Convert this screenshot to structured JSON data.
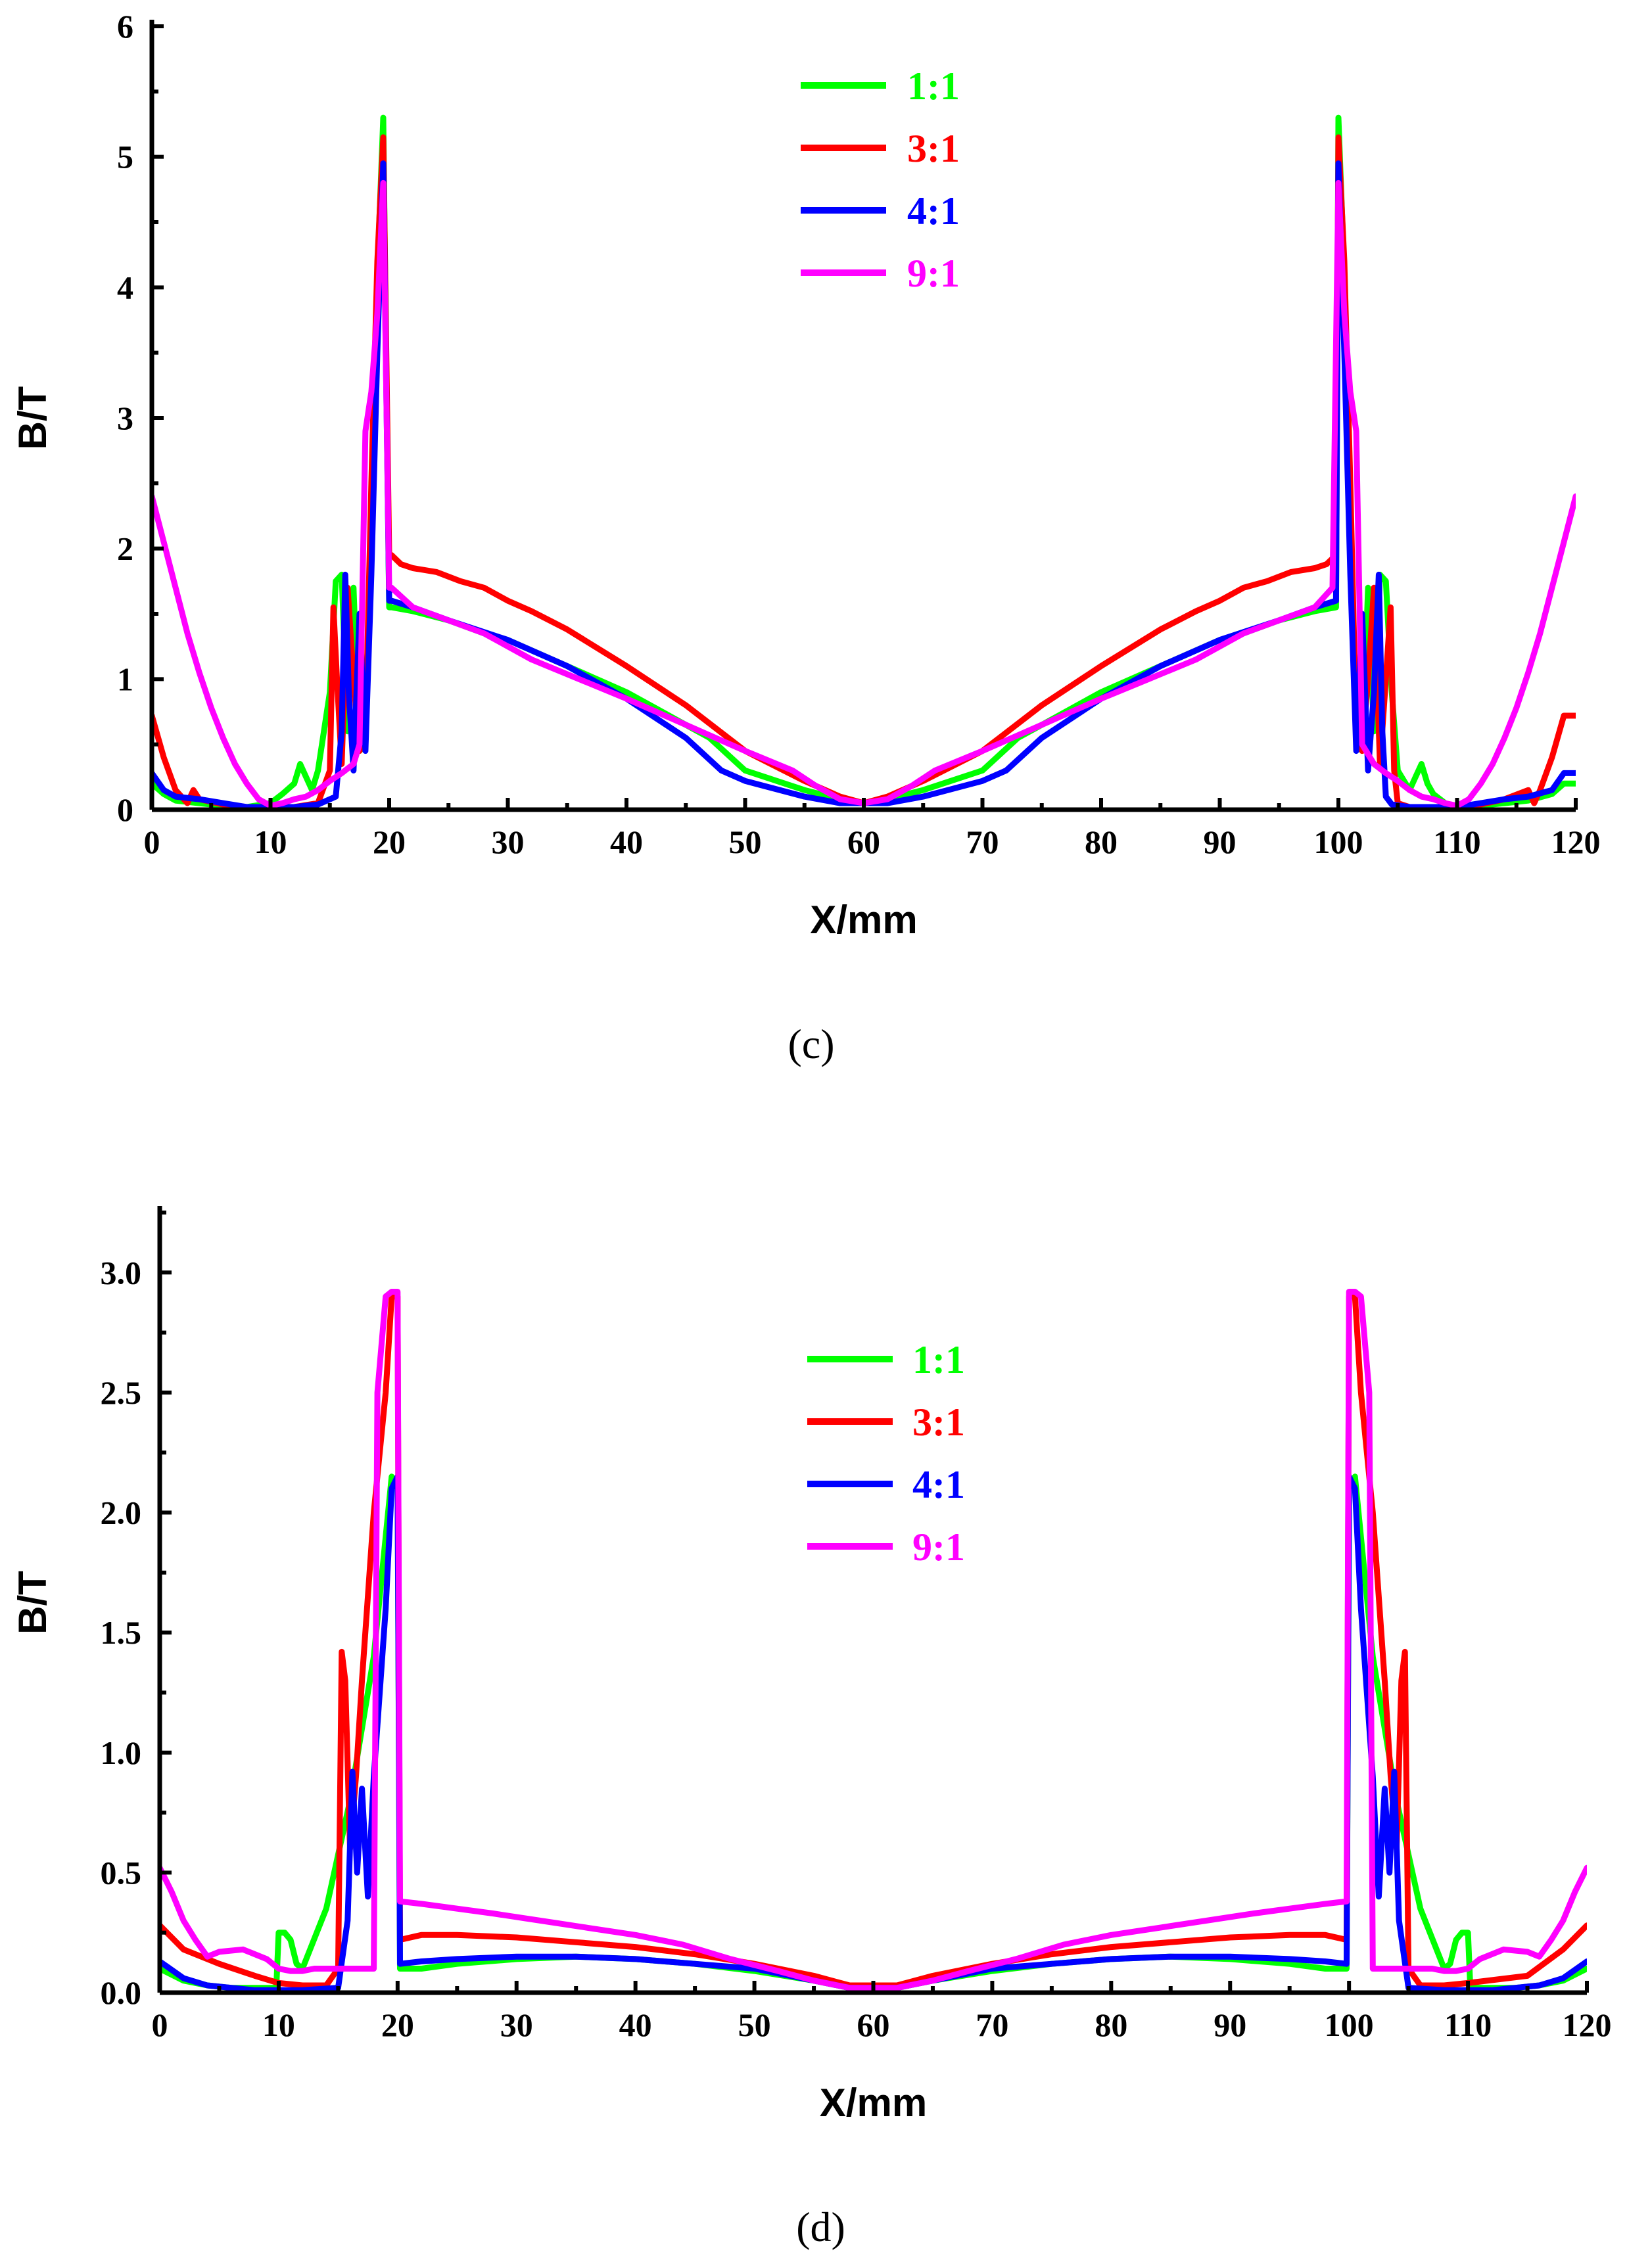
{
  "colors": {
    "1:1": "#00ff00",
    "3:1": "#ff0000",
    "4:1": "#0000ff",
    "9:1": "#ff00ff"
  },
  "chart_data": [
    {
      "id": "c",
      "caption": "(c)",
      "type": "line",
      "title": "",
      "xlabel": "X/mm",
      "ylabel": "B/T",
      "xlim": [
        0,
        120
      ],
      "ylim": [
        0,
        6
      ],
      "xticks": [
        0,
        10,
        20,
        30,
        40,
        50,
        60,
        70,
        80,
        90,
        100,
        110,
        120
      ],
      "yticks": [
        0,
        1,
        2,
        3,
        4,
        5,
        6
      ],
      "ytick_labels": [
        "0",
        "1",
        "2",
        "3",
        "4",
        "5",
        "6"
      ],
      "legend_position": "top-center",
      "series": [
        {
          "name": "1:1",
          "color": "#00ff00",
          "x": [
            0,
            1,
            2,
            4,
            6,
            8,
            10,
            11,
            12,
            12.5,
            13,
            13.5,
            14,
            15,
            15.5,
            16,
            16.5,
            17,
            17.5,
            18,
            18.5,
            19,
            19.5,
            20,
            20.2,
            22,
            25,
            28,
            30,
            35,
            40,
            45,
            47,
            50,
            55,
            58,
            60,
            62,
            65,
            70,
            73,
            75,
            80,
            85,
            90,
            92,
            95,
            98,
            99.8,
            100,
            100.5,
            101,
            101.5,
            102,
            102.5,
            103,
            103.5,
            104,
            104.5,
            105,
            106,
            106.5,
            107,
            107.5,
            108,
            109,
            110,
            112,
            114,
            116,
            118,
            119,
            120
          ],
          "y": [
            0.2,
            0.12,
            0.07,
            0.05,
            0.03,
            0.02,
            0.05,
            0.12,
            0.2,
            0.35,
            0.25,
            0.15,
            0.3,
            0.9,
            1.75,
            1.8,
            0.6,
            1.7,
            0.45,
            0.5,
            2.3,
            4.1,
            5.3,
            1.55,
            1.55,
            1.52,
            1.45,
            1.35,
            1.3,
            1.1,
            0.9,
            0.65,
            0.55,
            0.3,
            0.15,
            0.08,
            0.05,
            0.08,
            0.15,
            0.3,
            0.55,
            0.65,
            0.9,
            1.1,
            1.3,
            1.35,
            1.45,
            1.52,
            1.55,
            5.3,
            4.1,
            2.3,
            0.5,
            0.45,
            1.7,
            0.6,
            1.8,
            1.75,
            0.9,
            0.3,
            0.15,
            0.25,
            0.35,
            0.2,
            0.12,
            0.05,
            0.02,
            0.03,
            0.05,
            0.07,
            0.12,
            0.2,
            0.2
          ]
        },
        {
          "name": "3:1",
          "color": "#ff0000",
          "x": [
            0,
            1,
            2,
            3,
            3.5,
            4,
            6,
            8,
            10,
            12,
            14,
            15,
            15.3,
            15.6,
            16,
            16.5,
            17,
            17.5,
            18,
            18.5,
            19,
            19.5,
            20,
            20.2,
            21,
            22,
            24,
            26,
            28,
            30,
            32,
            35,
            40,
            45,
            50,
            55,
            58,
            60,
            62,
            65,
            70,
            75,
            80,
            85,
            88,
            90,
            92,
            94,
            96,
            98,
            99,
            99.8,
            100,
            100.5,
            101,
            101.5,
            102,
            102.5,
            103,
            103.5,
            104,
            104.4,
            104.7,
            105,
            106,
            108,
            110,
            112,
            114,
            116,
            116.5,
            117,
            118,
            119,
            120
          ],
          "y": [
            0.72,
            0.4,
            0.15,
            0.05,
            0.15,
            0.08,
            0.04,
            0.02,
            0.02,
            0.02,
            0.05,
            0.3,
            1.55,
            1.0,
            0.35,
            1.7,
            1.0,
            0.45,
            0.6,
            2.5,
            4.2,
            5.15,
            1.95,
            1.95,
            1.88,
            1.85,
            1.82,
            1.75,
            1.7,
            1.6,
            1.52,
            1.38,
            1.1,
            0.8,
            0.45,
            0.22,
            0.1,
            0.05,
            0.1,
            0.22,
            0.45,
            0.8,
            1.1,
            1.38,
            1.52,
            1.6,
            1.7,
            1.75,
            1.82,
            1.85,
            1.88,
            1.95,
            5.15,
            4.2,
            2.5,
            0.6,
            0.45,
            1.0,
            1.7,
            0.35,
            1.0,
            1.55,
            0.3,
            0.05,
            0.02,
            0.02,
            0.02,
            0.04,
            0.08,
            0.15,
            0.05,
            0.15,
            0.4,
            0.72,
            0.72
          ]
        },
        {
          "name": "4:1",
          "color": "#0000ff",
          "x": [
            0,
            1,
            2,
            4,
            6,
            8,
            10,
            12,
            14,
            15.5,
            16,
            16.3,
            16.6,
            17,
            17.5,
            18,
            18.5,
            19,
            19.5,
            20,
            20.2,
            22,
            25,
            30,
            35,
            40,
            45,
            48,
            50,
            55,
            58,
            60,
            62,
            65,
            70,
            72,
            75,
            80,
            85,
            90,
            95,
            98,
            99.8,
            100,
            100.5,
            101,
            101.5,
            102,
            102.5,
            103,
            103.4,
            103.7,
            104,
            104.5,
            106,
            108,
            110,
            112,
            114,
            116,
            118,
            119,
            120
          ],
          "y": [
            0.28,
            0.15,
            0.1,
            0.08,
            0.05,
            0.02,
            0.02,
            0.02,
            0.04,
            0.1,
            0.6,
            1.8,
            0.9,
            0.3,
            1.5,
            0.45,
            1.8,
            3.5,
            4.95,
            1.6,
            1.6,
            1.55,
            1.45,
            1.3,
            1.1,
            0.85,
            0.55,
            0.3,
            0.22,
            0.1,
            0.05,
            0.05,
            0.05,
            0.1,
            0.22,
            0.3,
            0.55,
            0.85,
            1.1,
            1.3,
            1.45,
            1.55,
            1.6,
            4.95,
            3.5,
            1.8,
            0.45,
            1.5,
            0.3,
            0.9,
            1.8,
            0.6,
            0.1,
            0.04,
            0.02,
            0.02,
            0.02,
            0.05,
            0.08,
            0.1,
            0.15,
            0.28,
            0.28
          ]
        },
        {
          "name": "9:1",
          "color": "#ff00ff",
          "x": [
            0,
            1,
            2,
            3,
            4,
            5,
            6,
            7,
            8,
            9,
            10,
            11,
            12,
            13,
            14,
            15,
            16,
            17,
            17.5,
            18,
            18.5,
            19,
            19.5,
            20,
            20.2,
            22,
            25,
            28,
            32,
            36,
            40,
            45,
            50,
            54,
            56,
            58,
            60,
            62,
            64,
            66,
            70,
            75,
            80,
            84,
            88,
            92,
            95,
            98,
            99.5,
            100,
            100.5,
            101,
            101.5,
            102,
            103,
            104,
            105,
            106,
            107,
            108,
            109,
            110,
            111,
            112,
            113,
            114,
            115,
            116,
            117,
            118,
            119,
            120
          ],
          "y": [
            2.4,
            2.05,
            1.7,
            1.35,
            1.05,
            0.78,
            0.55,
            0.35,
            0.2,
            0.08,
            0.03,
            0.05,
            0.08,
            0.1,
            0.15,
            0.22,
            0.28,
            0.35,
            0.5,
            2.9,
            3.2,
            3.8,
            4.8,
            1.7,
            1.7,
            1.55,
            1.45,
            1.35,
            1.15,
            1.0,
            0.85,
            0.65,
            0.45,
            0.3,
            0.18,
            0.08,
            0.05,
            0.08,
            0.18,
            0.3,
            0.45,
            0.65,
            0.85,
            1.0,
            1.15,
            1.35,
            1.45,
            1.55,
            1.7,
            4.8,
            3.8,
            3.2,
            2.9,
            0.5,
            0.35,
            0.28,
            0.22,
            0.15,
            0.1,
            0.08,
            0.05,
            0.03,
            0.08,
            0.2,
            0.35,
            0.55,
            0.78,
            1.05,
            1.35,
            1.7,
            2.05,
            2.4
          ]
        }
      ]
    },
    {
      "id": "d",
      "caption": "(d)",
      "type": "line",
      "title": "",
      "xlabel": "X/mm",
      "ylabel": "B/T",
      "xlim": [
        0,
        120
      ],
      "ylim": [
        0,
        3.25
      ],
      "xticks": [
        0,
        10,
        20,
        30,
        40,
        50,
        60,
        70,
        80,
        90,
        100,
        110,
        120
      ],
      "yticks": [
        0,
        0.5,
        1.0,
        1.5,
        2.0,
        2.5,
        3.0
      ],
      "ytick_labels": [
        "0.0",
        "0.5",
        "1.0",
        "1.5",
        "2.0",
        "2.5",
        "3.0"
      ],
      "legend_position": "top-center",
      "series": [
        {
          "name": "1:1",
          "color": "#00ff00",
          "x": [
            0,
            2,
            4,
            6,
            8,
            9.8,
            10,
            10.5,
            11,
            11.5,
            12,
            14,
            16,
            18,
            19.5,
            20,
            20.2,
            22,
            25,
            30,
            35,
            40,
            45,
            50,
            55,
            58,
            60,
            62,
            65,
            70,
            75,
            80,
            85,
            90,
            95,
            98,
            99.8,
            100,
            100.5,
            102,
            104,
            106,
            108,
            108.5,
            109,
            109.5,
            110,
            110.2,
            112,
            114,
            116,
            118,
            120
          ],
          "y": [
            0.1,
            0.05,
            0.03,
            0.02,
            0.02,
            0.02,
            0.25,
            0.25,
            0.22,
            0.12,
            0.1,
            0.35,
            0.8,
            1.4,
            2.15,
            2.1,
            0.1,
            0.1,
            0.12,
            0.14,
            0.15,
            0.14,
            0.12,
            0.09,
            0.05,
            0.02,
            0.02,
            0.02,
            0.05,
            0.09,
            0.12,
            0.14,
            0.15,
            0.14,
            0.12,
            0.1,
            0.1,
            2.1,
            2.15,
            1.4,
            0.8,
            0.35,
            0.1,
            0.12,
            0.22,
            0.25,
            0.25,
            0.02,
            0.02,
            0.02,
            0.03,
            0.05,
            0.1
          ]
        },
        {
          "name": "3:1",
          "color": "#ff0000",
          "x": [
            0,
            2,
            5,
            8,
            10,
            12,
            14,
            15,
            15.3,
            15.6,
            16,
            16.5,
            17,
            18,
            19,
            19.5,
            20,
            20.2,
            22,
            25,
            30,
            35,
            40,
            45,
            50,
            55,
            58,
            60,
            62,
            65,
            70,
            75,
            80,
            85,
            90,
            95,
            98,
            99.8,
            100,
            100.5,
            101,
            102,
            103,
            103.5,
            104,
            104.4,
            104.7,
            105,
            106,
            108,
            110,
            115,
            118,
            120
          ],
          "y": [
            0.28,
            0.18,
            0.12,
            0.07,
            0.04,
            0.03,
            0.03,
            0.1,
            1.42,
            1.3,
            0.6,
            0.9,
            1.3,
            2.0,
            2.5,
            2.9,
            2.9,
            0.22,
            0.24,
            0.24,
            0.23,
            0.21,
            0.19,
            0.16,
            0.12,
            0.07,
            0.03,
            0.03,
            0.03,
            0.07,
            0.12,
            0.16,
            0.19,
            0.21,
            0.23,
            0.24,
            0.24,
            0.22,
            2.9,
            2.9,
            2.5,
            2.0,
            1.3,
            0.9,
            0.6,
            1.3,
            1.42,
            0.1,
            0.03,
            0.03,
            0.04,
            0.07,
            0.18,
            0.28
          ]
        },
        {
          "name": "4:1",
          "color": "#0000ff",
          "x": [
            0,
            2,
            4,
            8,
            12,
            15,
            15.8,
            16.2,
            16.6,
            17,
            17.5,
            18,
            19,
            19.5,
            20,
            20.2,
            22,
            25,
            30,
            35,
            40,
            45,
            50,
            55,
            58,
            60,
            62,
            65,
            70,
            75,
            80,
            85,
            90,
            95,
            98,
            99.8,
            100,
            100.5,
            101,
            102,
            102.5,
            103,
            103.4,
            103.8,
            104.2,
            105,
            108,
            112,
            116,
            118,
            120
          ],
          "y": [
            0.13,
            0.06,
            0.03,
            0.01,
            0.01,
            0.02,
            0.3,
            0.92,
            0.5,
            0.85,
            0.4,
            0.9,
            1.6,
            2.1,
            2.15,
            0.12,
            0.13,
            0.14,
            0.15,
            0.15,
            0.14,
            0.12,
            0.1,
            0.05,
            0.02,
            0.02,
            0.02,
            0.05,
            0.1,
            0.12,
            0.14,
            0.15,
            0.15,
            0.14,
            0.13,
            0.12,
            2.15,
            2.1,
            1.6,
            0.9,
            0.4,
            0.85,
            0.5,
            0.92,
            0.3,
            0.02,
            0.01,
            0.01,
            0.03,
            0.06,
            0.13
          ]
        },
        {
          "name": "9:1",
          "color": "#ff00ff",
          "x": [
            0,
            1,
            2,
            3,
            4,
            5,
            7,
            9,
            10,
            11,
            12,
            13,
            15,
            17,
            18,
            18.3,
            19,
            19.5,
            20,
            20.2,
            22,
            25,
            28,
            32,
            36,
            40,
            44,
            48,
            52,
            55,
            58,
            60,
            62,
            65,
            68,
            72,
            76,
            80,
            84,
            88,
            92,
            95,
            98,
            99.8,
            100,
            100.5,
            101,
            101.7,
            102,
            103,
            105,
            107,
            108,
            109,
            110,
            111,
            113,
            115,
            116,
            117,
            118,
            119,
            120
          ],
          "y": [
            0.52,
            0.42,
            0.3,
            0.22,
            0.15,
            0.17,
            0.18,
            0.14,
            0.1,
            0.09,
            0.09,
            0.1,
            0.1,
            0.1,
            0.1,
            2.5,
            2.9,
            2.92,
            2.92,
            0.38,
            0.37,
            0.35,
            0.33,
            0.3,
            0.27,
            0.24,
            0.2,
            0.14,
            0.09,
            0.05,
            0.02,
            0.02,
            0.02,
            0.05,
            0.09,
            0.14,
            0.2,
            0.24,
            0.27,
            0.3,
            0.33,
            0.35,
            0.37,
            0.38,
            2.92,
            2.92,
            2.9,
            2.5,
            0.1,
            0.1,
            0.1,
            0.1,
            0.09,
            0.09,
            0.1,
            0.14,
            0.18,
            0.17,
            0.15,
            0.22,
            0.3,
            0.42,
            0.52
          ]
        }
      ]
    }
  ]
}
